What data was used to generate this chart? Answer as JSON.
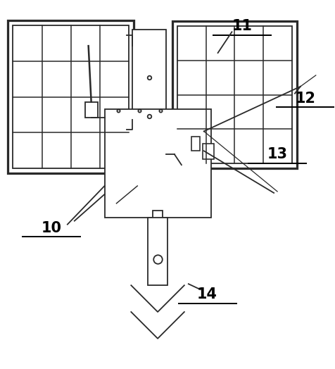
{
  "bg_color": "#ffffff",
  "line_color": "#2a2a2a",
  "lw": 1.3,
  "fig_width": 4.76,
  "fig_height": 5.24,
  "label_fontsize": 15
}
